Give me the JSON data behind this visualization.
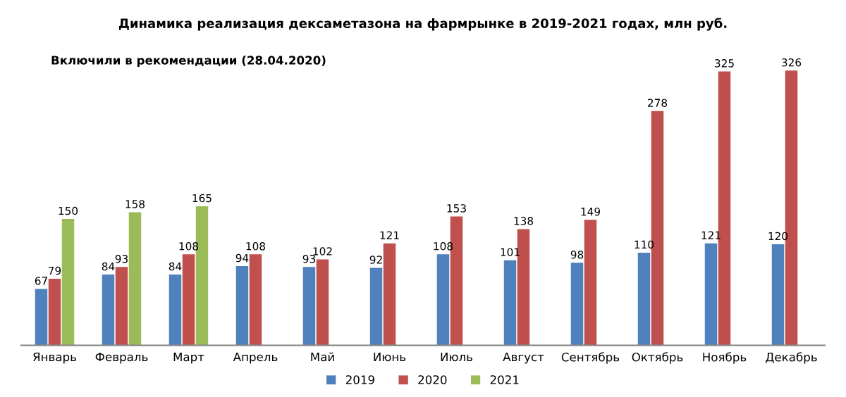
{
  "chart_data": {
    "type": "bar",
    "title": "Динамика реализация дексаметазона на фармрынке в 2019-2021 годах, млн руб.",
    "annotations": [
      "Включили в рекомендации (28.04.2020)"
    ],
    "categories": [
      "Январь",
      "Февраль",
      "Март",
      "Апрель",
      "Май",
      "Июнь",
      "Июль",
      "Август",
      "Сентябрь",
      "Октябрь",
      "Ноябрь",
      "Декабрь"
    ],
    "series": [
      {
        "name": "2019",
        "color": "#4f81bd",
        "values": [
          67,
          84,
          84,
          94,
          93,
          92,
          108,
          101,
          98,
          110,
          121,
          120
        ]
      },
      {
        "name": "2020",
        "color": "#c0504d",
        "values": [
          79,
          93,
          108,
          108,
          102,
          121,
          153,
          138,
          149,
          278,
          325,
          326
        ]
      },
      {
        "name": "2021",
        "color": "#9bbb59",
        "values": [
          150,
          158,
          165,
          null,
          null,
          null,
          null,
          null,
          null,
          null,
          null,
          null
        ]
      }
    ],
    "data_labels": true,
    "legend": "bottom",
    "grid": false
  }
}
